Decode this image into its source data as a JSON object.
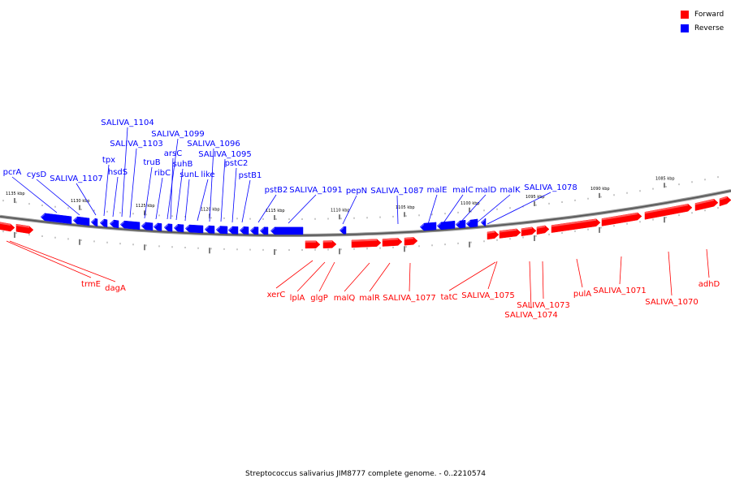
{
  "legend": {
    "forward": {
      "label": "Forward",
      "color": "#ff0000"
    },
    "reverse": {
      "label": "Reverse",
      "color": "#0000ff"
    }
  },
  "caption": "Streptococcus salivarius JIM8777 complete genome. - 0..2210574",
  "ruler": {
    "ticks": [
      "1135 kbp",
      "1130 kbp",
      "1125 kbp",
      "1120 kbp",
      "1115 kbp",
      "1110 kbp",
      "1105 kbp",
      "1100 kbp",
      "1095 kbp",
      "1090 kbp",
      "1085 kbp"
    ]
  },
  "reverse_genes": [
    "pcrA",
    "cysD",
    "SALIVA_1107",
    "tpx",
    "hsdS",
    "SALIVA_1104",
    "SALIVA_1103",
    "truB",
    "ribC",
    "SALIVA_1099",
    "arsC",
    "suhB",
    "sunL",
    "like",
    "SALIVA_1096",
    "SALIVA_1095",
    "pstC2",
    "pstB1",
    "pstB2",
    "SALIVA_1091",
    "pepN",
    "SALIVA_1087",
    "malE",
    "malC",
    "malD",
    "malK",
    "SALIVA_1078"
  ],
  "forward_genes": [
    "trmE",
    "dagA",
    "xerC",
    "lplA",
    "glgP",
    "malQ",
    "malR",
    "SALIVA_1077",
    "tatC",
    "SALIVA_1075",
    "SALIVA_1073",
    "SALIVA_1074",
    "pulA",
    "SALIVA_1071",
    "SALIVA_1070",
    "adhD"
  ]
}
